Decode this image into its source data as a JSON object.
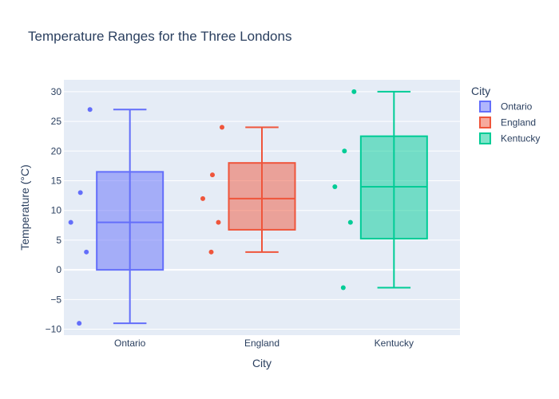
{
  "chart_data": {
    "type": "box",
    "title": "Temperature Ranges for the Three Londons",
    "xlabel": "City",
    "ylabel": "Temperature (°C)",
    "ylim": [
      -11,
      32
    ],
    "yticks": [
      -10,
      -5,
      0,
      5,
      10,
      15,
      20,
      25,
      30
    ],
    "ytick_labels": [
      "−10",
      "−5",
      "0",
      "5",
      "10",
      "15",
      "20",
      "25",
      "30"
    ],
    "grid": true,
    "legend_title": "City",
    "legend_position": "right",
    "series": [
      {
        "name": "Ontario",
        "color": "#636efa",
        "points": [
          27,
          13,
          8,
          3,
          -9
        ],
        "min": -9,
        "q1": 0,
        "median": 8,
        "q3": 16.5,
        "max": 27
      },
      {
        "name": "England",
        "color": "#ef553b",
        "points": [
          24,
          16,
          12,
          8,
          3
        ],
        "min": 3,
        "q1": 6.75,
        "median": 12,
        "q3": 18,
        "max": 24
      },
      {
        "name": "Kentucky",
        "color": "#00cc96",
        "points": [
          30,
          20,
          14,
          8,
          -3
        ],
        "min": -3,
        "q1": 5.25,
        "median": 14,
        "q3": 22.5,
        "max": 30
      }
    ]
  }
}
